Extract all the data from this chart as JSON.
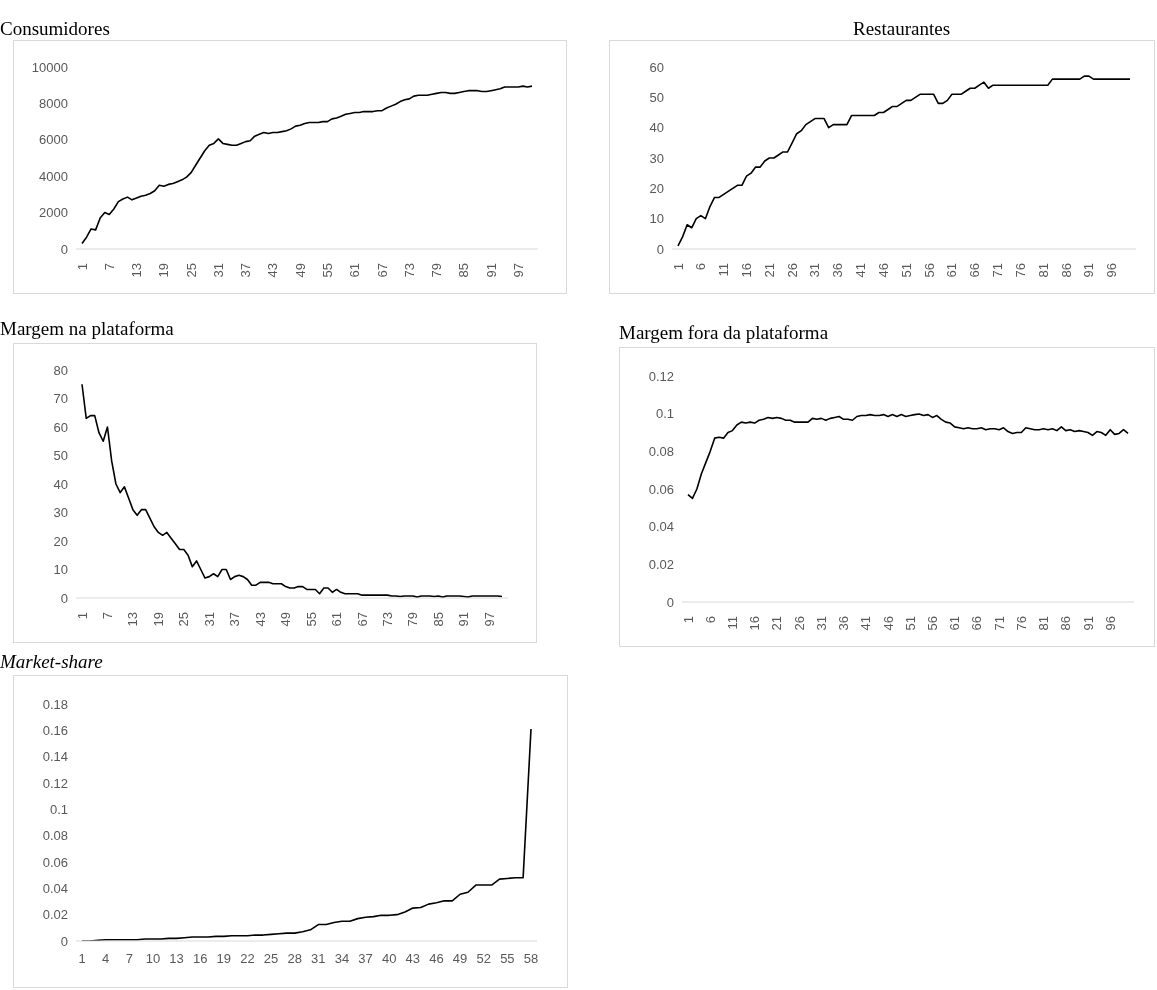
{
  "chart_data": [
    {
      "type": "line",
      "title": "Consumidores",
      "ylim": [
        0,
        10000
      ],
      "yticks": [
        0,
        2000,
        4000,
        6000,
        8000,
        10000
      ],
      "categories": [
        "1",
        null,
        null,
        null,
        null,
        null,
        "7",
        null,
        null,
        null,
        null,
        null,
        "13",
        null,
        null,
        null,
        null,
        null,
        "19",
        null,
        null,
        null,
        null,
        null,
        "25",
        null,
        null,
        null,
        null,
        null,
        "31",
        null,
        null,
        null,
        null,
        null,
        "37",
        null,
        null,
        null,
        null,
        null,
        "43",
        null,
        null,
        null,
        null,
        null,
        "49",
        null,
        null,
        null,
        null,
        null,
        "55",
        null,
        null,
        null,
        null,
        null,
        "61",
        null,
        null,
        null,
        null,
        null,
        "67",
        null,
        null,
        null,
        null,
        null,
        "73",
        null,
        null,
        null,
        null,
        null,
        "79",
        null,
        null,
        null,
        null,
        null,
        "85",
        null,
        null,
        null,
        null,
        null,
        "91",
        null,
        null,
        null,
        null,
        null,
        "97",
        null,
        null,
        null
      ],
      "series": [
        {
          "color": "#000000",
          "values": [
            300,
            650,
            1100,
            1050,
            1700,
            2000,
            1900,
            2200,
            2600,
            2750,
            2850,
            2700,
            2800,
            2900,
            2950,
            3050,
            3200,
            3500,
            3450,
            3550,
            3600,
            3700,
            3800,
            3950,
            4200,
            4600,
            5000,
            5400,
            5700,
            5800,
            6050,
            5800,
            5750,
            5700,
            5700,
            5800,
            5900,
            5950,
            6200,
            6300,
            6400,
            6350,
            6400,
            6400,
            6450,
            6500,
            6600,
            6750,
            6800,
            6900,
            6950,
            6950,
            6950,
            7000,
            7000,
            7150,
            7200,
            7300,
            7400,
            7450,
            7500,
            7500,
            7550,
            7550,
            7550,
            7600,
            7600,
            7750,
            7850,
            7950,
            8100,
            8200,
            8250,
            8400,
            8450,
            8450,
            8450,
            8500,
            8550,
            8600,
            8600,
            8550,
            8550,
            8600,
            8650,
            8700,
            8700,
            8700,
            8650,
            8650,
            8700,
            8750,
            8800,
            8900,
            8900,
            8900,
            8900,
            8950,
            8900,
            8950
          ]
        }
      ]
    },
    {
      "type": "line",
      "title": "Restaurantes",
      "ylim": [
        0,
        60
      ],
      "yticks": [
        0,
        10,
        20,
        30,
        40,
        50,
        60
      ],
      "categories": [
        "1",
        null,
        null,
        null,
        null,
        "6",
        null,
        null,
        null,
        null,
        "11",
        null,
        null,
        null,
        null,
        "16",
        null,
        null,
        null,
        null,
        "21",
        null,
        null,
        null,
        null,
        "26",
        null,
        null,
        null,
        null,
        "31",
        null,
        null,
        null,
        null,
        "36",
        null,
        null,
        null,
        null,
        "41",
        null,
        null,
        null,
        null,
        "46",
        null,
        null,
        null,
        null,
        "51",
        null,
        null,
        null,
        null,
        "56",
        null,
        null,
        null,
        null,
        "61",
        null,
        null,
        null,
        null,
        "66",
        null,
        null,
        null,
        null,
        "71",
        null,
        null,
        null,
        null,
        "76",
        null,
        null,
        null,
        null,
        "81",
        null,
        null,
        null,
        null,
        "86",
        null,
        null,
        null,
        null,
        "91",
        null,
        null,
        null,
        null,
        "96",
        null,
        null,
        null,
        null
      ],
      "series": [
        {
          "color": "#000000",
          "values": [
            1,
            4,
            8,
            7,
            10,
            11,
            10,
            14,
            17,
            17,
            18,
            19,
            20,
            21,
            21,
            24,
            25,
            27,
            27,
            29,
            30,
            30,
            31,
            32,
            32,
            35,
            38,
            39,
            41,
            42,
            43,
            43,
            43,
            40,
            41,
            41,
            41,
            41,
            44,
            44,
            44,
            44,
            44,
            44,
            45,
            45,
            46,
            47,
            47,
            48,
            49,
            49,
            50,
            51,
            51,
            51,
            51,
            48,
            48,
            49,
            51,
            51,
            51,
            52,
            53,
            53,
            54,
            55,
            53,
            54,
            54,
            54,
            54,
            54,
            54,
            54,
            54,
            54,
            54,
            54,
            54,
            54,
            56,
            56,
            56,
            56,
            56,
            56,
            56,
            57,
            57,
            56,
            56,
            56,
            56,
            56,
            56,
            56,
            56,
            56
          ]
        }
      ]
    },
    {
      "type": "line",
      "title": "Margem na plataforma",
      "ylim": [
        0,
        80
      ],
      "yticks": [
        0,
        10,
        20,
        30,
        40,
        50,
        60,
        70,
        80
      ],
      "categories": [
        "1",
        null,
        null,
        null,
        null,
        null,
        "7",
        null,
        null,
        null,
        null,
        null,
        "13",
        null,
        null,
        null,
        null,
        null,
        "19",
        null,
        null,
        null,
        null,
        null,
        "25",
        null,
        null,
        null,
        null,
        null,
        "31",
        null,
        null,
        null,
        null,
        null,
        "37",
        null,
        null,
        null,
        null,
        null,
        "43",
        null,
        null,
        null,
        null,
        null,
        "49",
        null,
        null,
        null,
        null,
        null,
        "55",
        null,
        null,
        null,
        null,
        null,
        "61",
        null,
        null,
        null,
        null,
        null,
        "67",
        null,
        null,
        null,
        null,
        null,
        "73",
        null,
        null,
        null,
        null,
        null,
        "79",
        null,
        null,
        null,
        null,
        null,
        "85",
        null,
        null,
        null,
        null,
        null,
        "91",
        null,
        null,
        null,
        null,
        null,
        "97",
        null,
        null,
        null
      ],
      "series": [
        {
          "color": "#000000",
          "values": [
            75,
            63,
            64,
            64,
            58,
            55,
            60,
            48,
            40,
            37,
            39,
            35,
            31,
            29,
            31,
            31,
            28,
            25,
            23,
            22,
            23,
            21,
            19,
            17,
            17,
            15,
            11,
            13,
            10,
            7,
            7.5,
            8.5,
            7.5,
            10,
            10,
            6.5,
            7.5,
            8,
            7.5,
            6.5,
            4.5,
            4.5,
            5.5,
            5.5,
            5.5,
            5,
            5,
            5,
            4,
            3.5,
            3.5,
            4,
            4,
            3,
            3,
            3,
            1.5,
            3.5,
            3.5,
            2,
            3,
            2,
            1.5,
            1.5,
            1.5,
            1.5,
            1,
            1,
            1,
            1,
            1,
            1,
            1,
            0.7,
            0.7,
            0.5,
            0.7,
            0.7,
            0.7,
            0.3,
            0.7,
            0.7,
            0.7,
            0.5,
            0.7,
            0.3,
            0.7,
            0.7,
            0.7,
            0.7,
            0.5,
            0.3,
            0.7,
            0.7,
            0.7,
            0.7,
            0.7,
            0.7,
            0.7,
            0.5
          ]
        }
      ]
    },
    {
      "type": "line",
      "title": "Margem fora da plataforma",
      "ylim": [
        0,
        0.12
      ],
      "yticks": [
        0,
        0.02,
        0.04,
        0.06,
        0.08,
        0.1,
        0.12
      ],
      "categories": [
        "1",
        null,
        null,
        null,
        null,
        "6",
        null,
        null,
        null,
        null,
        "11",
        null,
        null,
        null,
        null,
        "16",
        null,
        null,
        null,
        null,
        "21",
        null,
        null,
        null,
        null,
        "26",
        null,
        null,
        null,
        null,
        "31",
        null,
        null,
        null,
        null,
        "36",
        null,
        null,
        null,
        null,
        "41",
        null,
        null,
        null,
        null,
        "46",
        null,
        null,
        null,
        null,
        "51",
        null,
        null,
        null,
        null,
        "56",
        null,
        null,
        null,
        null,
        "61",
        null,
        null,
        null,
        null,
        "66",
        null,
        null,
        null,
        null,
        "71",
        null,
        null,
        null,
        null,
        "76",
        null,
        null,
        null,
        null,
        "81",
        null,
        null,
        null,
        null,
        "86",
        null,
        null,
        null,
        null,
        "91",
        null,
        null,
        null,
        null,
        "96",
        null,
        null,
        null,
        null
      ],
      "series": [
        {
          "color": "#000000",
          "values": [
            0.057,
            0.055,
            0.06,
            0.068,
            0.074,
            0.08,
            0.087,
            0.0875,
            0.087,
            0.09,
            0.091,
            0.094,
            0.0955,
            0.095,
            0.0955,
            0.095,
            0.0965,
            0.097,
            0.098,
            0.0975,
            0.098,
            0.0975,
            0.0965,
            0.0965,
            0.0955,
            0.0955,
            0.0955,
            0.0955,
            0.0975,
            0.097,
            0.0975,
            0.0965,
            0.0975,
            0.098,
            0.0985,
            0.097,
            0.097,
            0.0965,
            0.0985,
            0.099,
            0.099,
            0.0995,
            0.099,
            0.099,
            0.0995,
            0.0985,
            0.0995,
            0.0985,
            0.0995,
            0.0985,
            0.099,
            0.0995,
            0.0998,
            0.099,
            0.0995,
            0.098,
            0.099,
            0.097,
            0.0955,
            0.095,
            0.093,
            0.0925,
            0.092,
            0.0925,
            0.092,
            0.092,
            0.0925,
            0.0915,
            0.092,
            0.092,
            0.0915,
            0.0925,
            0.0905,
            0.0895,
            0.09,
            0.09,
            0.0925,
            0.092,
            0.0915,
            0.0915,
            0.092,
            0.0915,
            0.092,
            0.091,
            0.093,
            0.091,
            0.0915,
            0.0905,
            0.091,
            0.0905,
            0.09,
            0.0885,
            0.0905,
            0.09,
            0.0885,
            0.0915,
            0.089,
            0.0895,
            0.0915,
            0.0895
          ]
        }
      ]
    },
    {
      "type": "line",
      "title": "Market-share",
      "ylim": [
        0,
        0.18
      ],
      "yticks": [
        0,
        0.02,
        0.04,
        0.06,
        0.08,
        0.1,
        0.12,
        0.14,
        0.16,
        0.18
      ],
      "categories": [
        "1",
        null,
        null,
        "4",
        null,
        null,
        "7",
        null,
        null,
        "10",
        null,
        null,
        "13",
        null,
        null,
        "16",
        null,
        null,
        "19",
        null,
        null,
        "22",
        null,
        null,
        "25",
        null,
        null,
        "28",
        null,
        null,
        "31",
        null,
        null,
        "34",
        null,
        null,
        "37",
        null,
        null,
        "40",
        null,
        null,
        "43",
        null,
        null,
        "46",
        null,
        null,
        "49",
        null,
        null,
        "52",
        null,
        null,
        "55",
        null,
        null,
        "58"
      ],
      "series": [
        {
          "color": "#000000",
          "values": [
            0,
            0,
            0.0005,
            0.001,
            0.001,
            0.001,
            0.001,
            0.001,
            0.0015,
            0.0015,
            0.0015,
            0.002,
            0.002,
            0.0025,
            0.003,
            0.003,
            0.003,
            0.0035,
            0.0035,
            0.004,
            0.004,
            0.004,
            0.0045,
            0.0045,
            0.005,
            0.0055,
            0.006,
            0.006,
            0.007,
            0.0085,
            0.0125,
            0.0125,
            0.014,
            0.015,
            0.015,
            0.017,
            0.018,
            0.0185,
            0.0195,
            0.0195,
            0.02,
            0.022,
            0.025,
            0.0255,
            0.028,
            0.029,
            0.0305,
            0.0305,
            0.0355,
            0.037,
            0.0425,
            0.0425,
            0.0425,
            0.047,
            0.0475,
            0.048,
            0.048,
            0.161
          ]
        }
      ]
    }
  ]
}
